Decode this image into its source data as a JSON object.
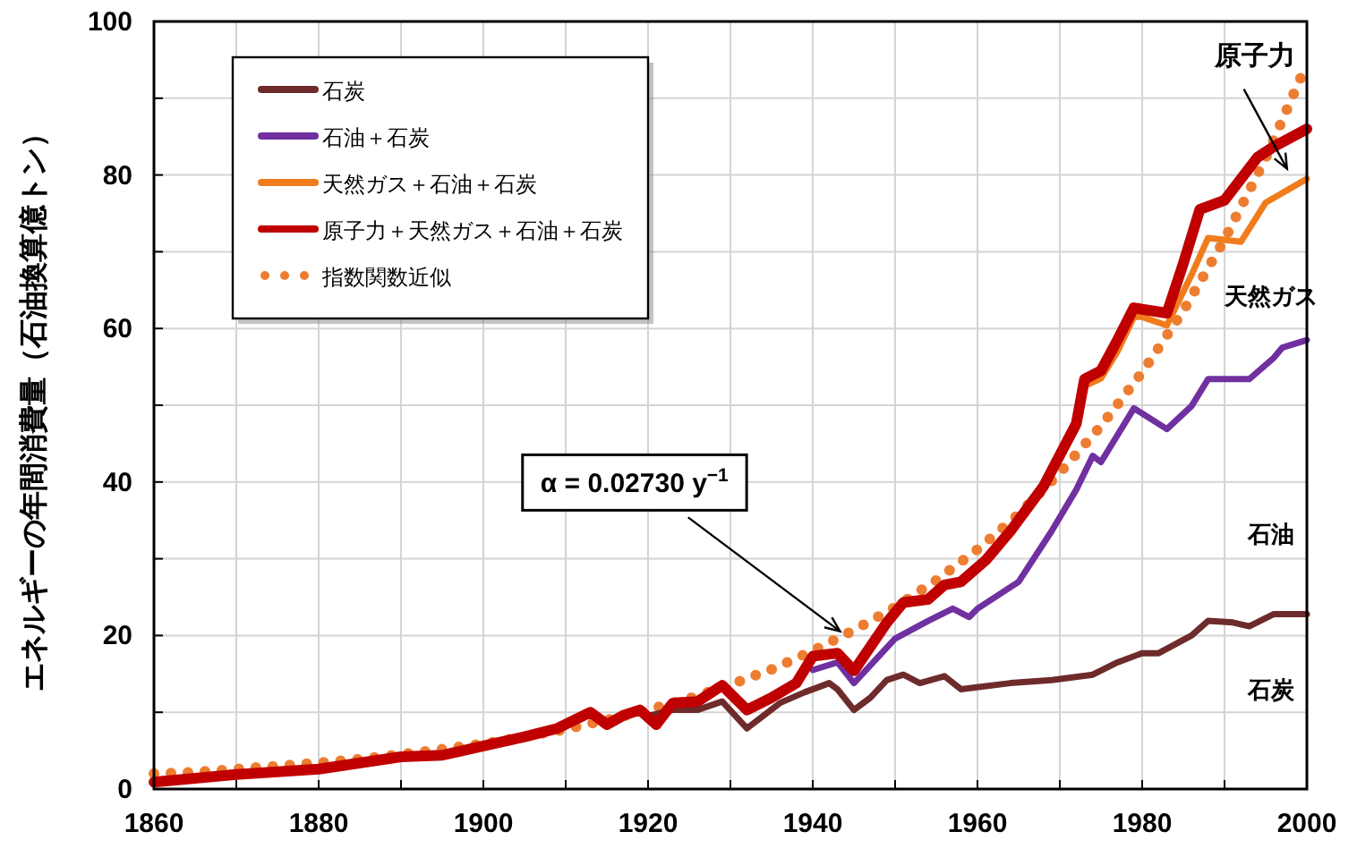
{
  "chart_data": {
    "type": "line",
    "ylabel": "エネルギーの年間消費量（石油換算億トン）",
    "xlim": [
      1860,
      2000
    ],
    "ylim": [
      0,
      100
    ],
    "xticks": [
      1860,
      {
        "value": 1870,
        "label": null
      },
      1880,
      {
        "value": 1890,
        "label": null
      },
      1900,
      {
        "value": 1910,
        "label": null
      },
      1920,
      {
        "value": 1930,
        "label": null
      },
      1940,
      {
        "value": 1950,
        "label": null
      },
      1960,
      {
        "value": 1970,
        "label": null
      },
      1980,
      {
        "value": 1990,
        "label": null
      },
      2000
    ],
    "yticks": [
      0,
      {
        "value": 10,
        "label": null
      },
      20,
      {
        "value": 30,
        "label": null
      },
      40,
      {
        "value": 50,
        "label": null
      },
      60,
      {
        "value": 70,
        "label": null
      },
      80,
      {
        "value": 90,
        "label": null
      },
      100
    ],
    "grid": true,
    "legend": "top left",
    "series": [
      {
        "name": "石炭",
        "color": "#6e2b2b",
        "x": [
          1920,
          1923,
          1926,
          1929,
          1932,
          1936,
          1939,
          1942,
          1943,
          1945,
          1947,
          1949,
          1951,
          1953,
          1956,
          1958,
          1964,
          1969,
          1974,
          1977,
          1980,
          1982,
          1986,
          1988,
          1991,
          1993,
          1996,
          2000
        ],
        "values": [
          9.5,
          10.3,
          10.3,
          11.4,
          7.9,
          11.2,
          12.6,
          13.8,
          13.0,
          10.3,
          11.9,
          14.2,
          14.9,
          13.8,
          14.7,
          13.0,
          13.8,
          14.2,
          14.9,
          16.5,
          17.7,
          17.7,
          20.0,
          21.9,
          21.7,
          21.2,
          22.8,
          22.8
        ]
      },
      {
        "name": "石油＋石炭",
        "color": "#7030a0",
        "x": [
          1940,
          1943,
          1945,
          1950,
          1954,
          1957,
          1959,
          1960,
          1965,
          1969,
          1972,
          1974,
          1975,
          1979,
          1983,
          1986,
          1988,
          1993,
          1996,
          1997,
          2000
        ],
        "values": [
          15.5,
          16.5,
          13.8,
          19.6,
          21.9,
          23.5,
          22.4,
          23.5,
          27.0,
          33.6,
          39.0,
          43.4,
          42.6,
          49.6,
          46.9,
          49.9,
          53.4,
          53.4,
          56.2,
          57.5,
          58.5
        ]
      },
      {
        "name": "天然ガス＋石油＋石炭",
        "color": "#f07c1c",
        "x": [
          1964,
          1968,
          1972,
          1973,
          1975,
          1977,
          1979,
          1980,
          1983,
          1986,
          1988,
          1992,
          1995,
          2000
        ],
        "values": [
          33.4,
          39.0,
          47.0,
          52.5,
          53.5,
          57.0,
          61.5,
          61.5,
          60.4,
          67.0,
          71.8,
          71.3,
          76.4,
          79.5
        ]
      },
      {
        "name": "原子力＋天然ガス＋石油＋石炭",
        "color": "#c00000",
        "x": [
          1860,
          1870,
          1880,
          1890,
          1895,
          1900,
          1905,
          1909,
          1913,
          1915,
          1917,
          1919,
          1921,
          1923,
          1926,
          1929,
          1932,
          1935,
          1938,
          1940,
          1943,
          1945,
          1949,
          1951,
          1954,
          1956,
          1958,
          1961,
          1964,
          1968,
          1972,
          1973,
          1975,
          1977,
          1979,
          1980,
          1983,
          1985,
          1987,
          1990,
          1994,
          1996,
          2000
        ],
        "values": [
          0.9,
          1.9,
          2.6,
          4.2,
          4.4,
          5.6,
          6.8,
          7.9,
          10.0,
          8.4,
          9.6,
          10.3,
          8.4,
          11.2,
          11.4,
          13.5,
          10.3,
          11.9,
          13.8,
          17.3,
          17.7,
          15.4,
          21.7,
          24.3,
          24.7,
          26.6,
          27.0,
          29.8,
          33.6,
          39.4,
          47.6,
          53.4,
          54.5,
          58.5,
          62.7,
          62.5,
          62.0,
          68.5,
          75.5,
          76.7,
          82.3,
          83.7,
          86.0
        ]
      },
      {
        "name": "指数関数近似",
        "color": "#ed7d31",
        "line_style": "dotted",
        "x": [
          1860,
          1865,
          1870,
          1875,
          1880,
          1885,
          1890,
          1895,
          1900,
          1905,
          1910,
          1915,
          1920,
          1925,
          1930,
          1935,
          1940,
          1945,
          1950,
          1955,
          1960,
          1965,
          1970,
          1975,
          1980,
          1985,
          1990,
          1995,
          2000
        ],
        "values": [
          2.0,
          2.2,
          2.6,
          3.0,
          3.4,
          3.9,
          4.5,
          5.2,
          5.9,
          6.8,
          7.8,
          9.0,
          10.3,
          11.8,
          13.6,
          15.6,
          18.0,
          20.7,
          23.7,
          27.2,
          31.2,
          35.8,
          41.2,
          47.3,
          54.3,
          62.3,
          71.6,
          82.2,
          94.5
        ]
      }
    ],
    "annotations": [
      {
        "text": "α = 0.02730 y$^{−1}$",
        "x": 1944,
        "y": 20
      },
      {
        "text": "原子力",
        "x": 1998,
        "y": 80
      },
      "天然ガス",
      "石油",
      "石炭"
    ]
  }
}
